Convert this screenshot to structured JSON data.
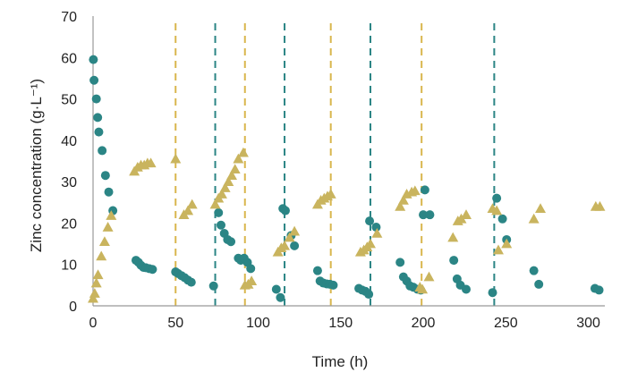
{
  "chart_data": {
    "type": "scatter",
    "title": "",
    "xlabel": "Time (h)",
    "ylabel": "Zinc concentration (g·L⁻¹)",
    "xlim": [
      0,
      310
    ],
    "ylim": [
      0,
      70
    ],
    "xticks": [
      0,
      50,
      100,
      150,
      200,
      250,
      300
    ],
    "yticks": [
      0,
      10,
      20,
      30,
      40,
      50,
      60,
      70
    ],
    "grid": false,
    "legend": "none",
    "series": [
      {
        "marker": "circle",
        "color": "#2b8585",
        "points": [
          [
            0.2,
            59.5
          ],
          [
            0.6,
            54.5
          ],
          [
            2,
            50
          ],
          [
            2.8,
            45.5
          ],
          [
            3.5,
            42
          ],
          [
            5.5,
            37.5
          ],
          [
            7.5,
            31.5
          ],
          [
            9.5,
            27.5
          ],
          [
            12,
            23
          ],
          [
            26,
            11
          ],
          [
            27.5,
            10.5
          ],
          [
            29,
            9.8
          ],
          [
            30.5,
            9.3
          ],
          [
            32,
            9.2
          ],
          [
            34,
            9
          ],
          [
            36,
            8.8
          ],
          [
            50,
            8.2
          ],
          [
            51.5,
            7.8
          ],
          [
            53.5,
            7.3
          ],
          [
            55.5,
            6.8
          ],
          [
            57.5,
            6.2
          ],
          [
            59.5,
            5.7
          ],
          [
            73,
            4.8
          ],
          [
            76,
            22.5
          ],
          [
            77.5,
            19.5
          ],
          [
            79.5,
            17.5
          ],
          [
            81.5,
            16
          ],
          [
            83.5,
            15.5
          ],
          [
            88,
            11.5
          ],
          [
            89.5,
            11
          ],
          [
            91.5,
            11.5
          ],
          [
            93.5,
            10.5
          ],
          [
            95.5,
            9
          ],
          [
            111,
            4
          ],
          [
            113.5,
            2
          ],
          [
            115,
            23.5
          ],
          [
            116.5,
            23
          ],
          [
            120,
            17
          ],
          [
            122,
            14.5
          ],
          [
            136,
            8.5
          ],
          [
            137.5,
            6
          ],
          [
            139.5,
            5.5
          ],
          [
            141.5,
            5.3
          ],
          [
            143.5,
            5.2
          ],
          [
            145.5,
            5
          ],
          [
            161,
            4.2
          ],
          [
            163,
            3.8
          ],
          [
            165,
            3.5
          ],
          [
            167,
            2.8
          ],
          [
            167.5,
            20.5
          ],
          [
            171.5,
            19
          ],
          [
            186,
            10.5
          ],
          [
            188,
            7
          ],
          [
            190,
            6
          ],
          [
            192,
            4.8
          ],
          [
            194,
            4.5
          ],
          [
            196.5,
            4
          ],
          [
            198.5,
            3.8
          ],
          [
            200,
            22
          ],
          [
            201,
            28
          ],
          [
            204,
            22
          ],
          [
            218.5,
            11
          ],
          [
            220.5,
            6.5
          ],
          [
            222.5,
            5
          ],
          [
            226,
            4
          ],
          [
            242,
            3.2
          ],
          [
            244.5,
            26
          ],
          [
            248,
            21
          ],
          [
            250.5,
            16
          ],
          [
            267,
            8.5
          ],
          [
            270,
            5.2
          ],
          [
            304,
            4.2
          ],
          [
            306.5,
            3.8
          ]
        ]
      },
      {
        "marker": "triangle",
        "color": "#c9b45e",
        "points": [
          [
            0,
            1.8
          ],
          [
            1,
            3
          ],
          [
            2,
            5.5
          ],
          [
            3,
            7.5
          ],
          [
            5,
            12
          ],
          [
            7,
            15.5
          ],
          [
            9,
            19
          ],
          [
            11,
            21.8
          ],
          [
            25,
            32.5
          ],
          [
            27,
            33.5
          ],
          [
            29,
            34
          ],
          [
            31,
            34
          ],
          [
            33,
            34.5
          ],
          [
            35,
            34.5
          ],
          [
            50,
            35.5
          ],
          [
            55,
            22
          ],
          [
            57.5,
            23
          ],
          [
            60,
            24.5
          ],
          [
            74,
            24.5
          ],
          [
            76,
            26
          ],
          [
            78,
            27
          ],
          [
            80,
            28.5
          ],
          [
            82,
            30
          ],
          [
            84,
            31.5
          ],
          [
            86,
            33
          ],
          [
            88,
            35.5
          ],
          [
            91,
            37
          ],
          [
            92,
            5
          ],
          [
            94,
            5.2
          ],
          [
            96,
            6
          ],
          [
            112,
            13
          ],
          [
            114,
            14
          ],
          [
            116,
            14.5
          ],
          [
            119,
            16.5
          ],
          [
            122,
            18
          ],
          [
            136,
            24.5
          ],
          [
            138,
            25.5
          ],
          [
            140,
            26
          ],
          [
            142,
            26.5
          ],
          [
            144,
            27
          ],
          [
            162,
            13
          ],
          [
            164,
            13.5
          ],
          [
            166,
            14.2
          ],
          [
            168,
            15
          ],
          [
            172,
            17.5
          ],
          [
            186,
            24
          ],
          [
            188,
            25.5
          ],
          [
            190,
            27
          ],
          [
            193,
            27.5
          ],
          [
            195,
            27.8
          ],
          [
            198,
            4.5
          ],
          [
            199.5,
            4
          ],
          [
            203.5,
            7
          ],
          [
            218,
            16.5
          ],
          [
            221,
            20.5
          ],
          [
            223,
            21
          ],
          [
            226,
            22
          ],
          [
            242,
            23.5
          ],
          [
            244.5,
            23
          ],
          [
            245.5,
            13.5
          ],
          [
            250.5,
            15
          ],
          [
            267,
            21
          ],
          [
            271,
            23.5
          ],
          [
            304.5,
            24
          ],
          [
            307,
            24
          ]
        ]
      }
    ],
    "reference_lines": [
      {
        "x": 50,
        "color": "#d9b64d",
        "style": "dashed"
      },
      {
        "x": 74,
        "color": "#2b8585",
        "style": "dashed"
      },
      {
        "x": 92,
        "color": "#d9b64d",
        "style": "dashed"
      },
      {
        "x": 116,
        "color": "#2b8585",
        "style": "dashed"
      },
      {
        "x": 144,
        "color": "#d9b64d",
        "style": "dashed"
      },
      {
        "x": 168,
        "color": "#2b8585",
        "style": "dashed"
      },
      {
        "x": 199,
        "color": "#d9b64d",
        "style": "dashed"
      },
      {
        "x": 243,
        "color": "#2b8585",
        "style": "dashed"
      }
    ]
  }
}
